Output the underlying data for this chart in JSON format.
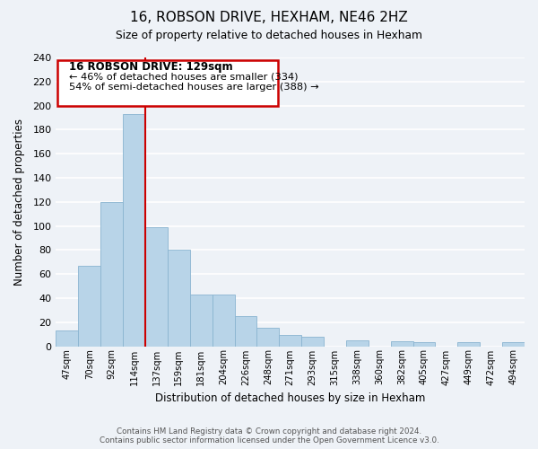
{
  "title": "16, ROBSON DRIVE, HEXHAM, NE46 2HZ",
  "subtitle": "Size of property relative to detached houses in Hexham",
  "xlabel": "Distribution of detached houses by size in Hexham",
  "ylabel": "Number of detached properties",
  "bar_labels": [
    "47sqm",
    "70sqm",
    "92sqm",
    "114sqm",
    "137sqm",
    "159sqm",
    "181sqm",
    "204sqm",
    "226sqm",
    "248sqm",
    "271sqm",
    "293sqm",
    "315sqm",
    "338sqm",
    "360sqm",
    "382sqm",
    "405sqm",
    "427sqm",
    "449sqm",
    "472sqm",
    "494sqm"
  ],
  "bar_values": [
    13,
    67,
    120,
    193,
    99,
    80,
    43,
    43,
    25,
    15,
    9,
    8,
    0,
    5,
    0,
    4,
    3,
    0,
    3,
    0,
    3
  ],
  "bar_color": "#b8d4e8",
  "bar_edge_color": "#8ab4d0",
  "vline_color": "#cc0000",
  "ylim": [
    0,
    240
  ],
  "yticks": [
    0,
    20,
    40,
    60,
    80,
    100,
    120,
    140,
    160,
    180,
    200,
    220,
    240
  ],
  "annotation_title": "16 ROBSON DRIVE: 129sqm",
  "annotation_line1": "← 46% of detached houses are smaller (334)",
  "annotation_line2": "54% of semi-detached houses are larger (388) →",
  "annotation_box_color": "#ffffff",
  "annotation_box_edge": "#cc0000",
  "footer_line1": "Contains HM Land Registry data © Crown copyright and database right 2024.",
  "footer_line2": "Contains public sector information licensed under the Open Government Licence v3.0.",
  "background_color": "#eef2f7",
  "grid_color": "#ffffff"
}
